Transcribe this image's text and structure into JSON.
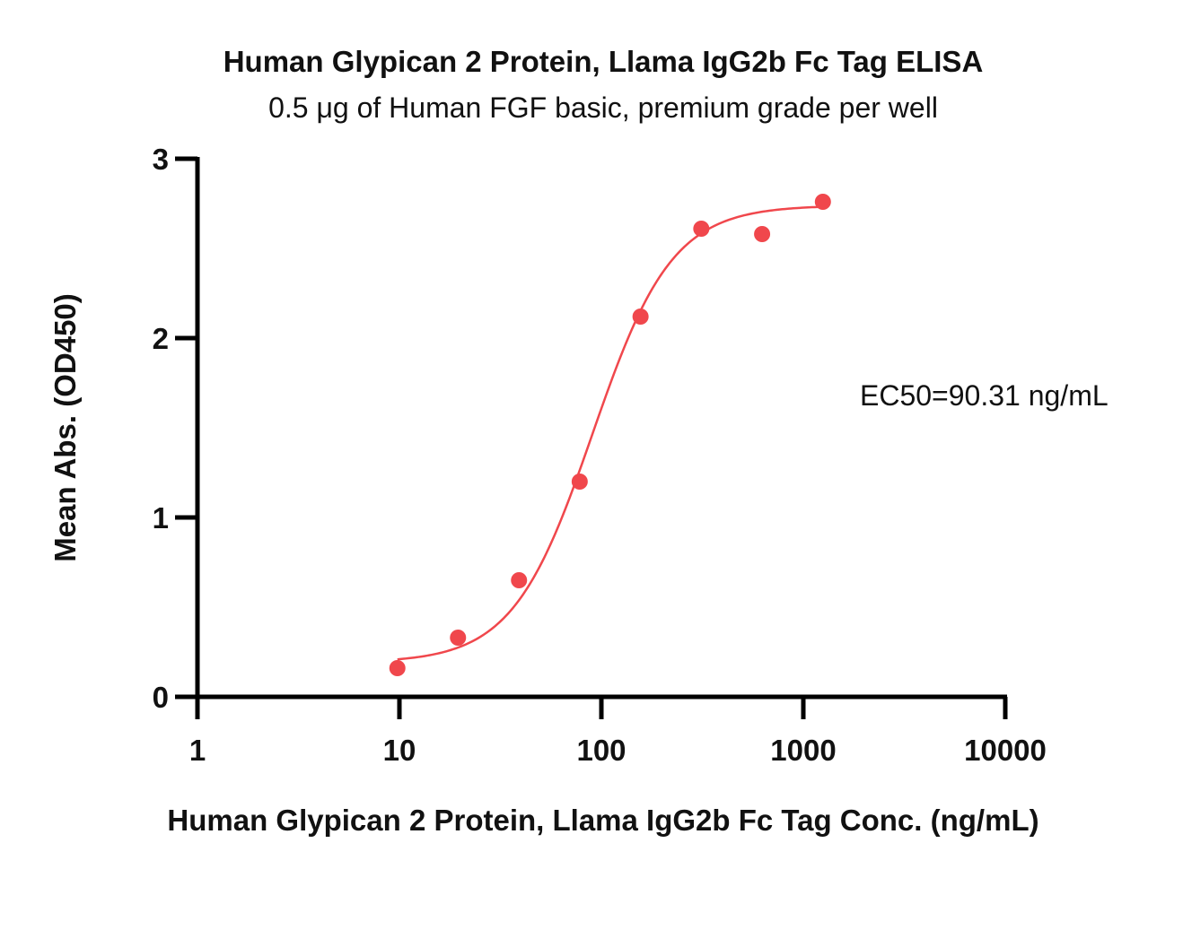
{
  "chart_data": {
    "type": "scatter",
    "title": "Human Glypican 2 Protein, Llama IgG2b Fc Tag ELISA",
    "subtitle": "0.5 μg of Human FGF basic, premium grade per well",
    "xlabel": "Human Glypican 2 Protein, Llama IgG2b Fc Tag Conc. (ng/mL)",
    "ylabel": "Mean Abs. (OD450)",
    "x_scale": "log",
    "xlim": [
      1,
      10000
    ],
    "ylim": [
      0,
      3
    ],
    "x_ticks": [
      1,
      10,
      100,
      1000,
      10000
    ],
    "x_tick_labels": [
      "1",
      "10",
      "100",
      "1000",
      "10000"
    ],
    "y_ticks": [
      0,
      1,
      2,
      3
    ],
    "y_tick_labels": [
      "0",
      "1",
      "2",
      "3"
    ],
    "grid": false,
    "series": [
      {
        "color": "#f0474c",
        "points": [
          {
            "x": 9.77,
            "y": 0.16
          },
          {
            "x": 19.5,
            "y": 0.33
          },
          {
            "x": 39.1,
            "y": 0.65
          },
          {
            "x": 78.1,
            "y": 1.2
          },
          {
            "x": 156.3,
            "y": 2.12
          },
          {
            "x": 312.5,
            "y": 2.61
          },
          {
            "x": 625,
            "y": 2.58
          },
          {
            "x": 1250,
            "y": 2.76
          }
        ],
        "fit": {
          "model": "4PL",
          "bottom": 0.19,
          "top": 2.74,
          "ec50": 90.31,
          "hill": 2.2,
          "x_range": [
            9.77,
            1250
          ]
        }
      }
    ],
    "annotations": [
      {
        "text": "EC50=90.31 ng/mL"
      }
    ]
  }
}
